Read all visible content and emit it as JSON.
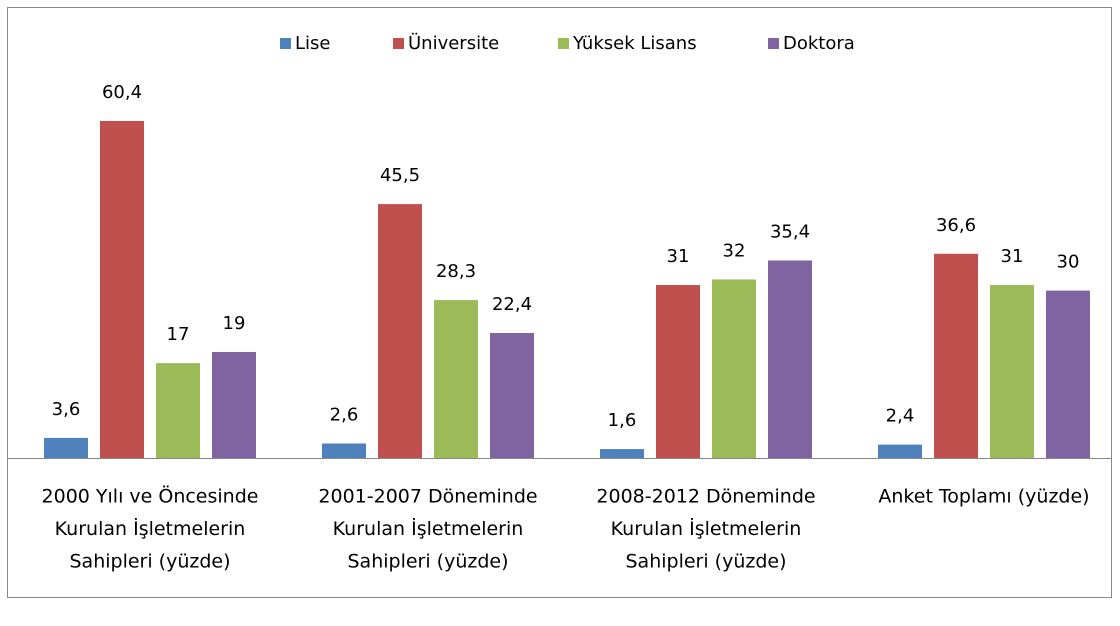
{
  "chart_data": {
    "type": "bar",
    "categories": [
      [
        "2000 Yılı ve Öncesinde",
        "Kurulan İşletmelerin",
        "Sahipleri (yüzde)"
      ],
      [
        "2001-2007 Döneminde",
        "Kurulan İşletmelerin",
        "Sahipleri (yüzde)"
      ],
      [
        "2008-2012 Döneminde",
        "Kurulan İşletmelerin",
        "Sahipleri (yüzde)"
      ],
      [
        "Anket Toplamı (yüzde)"
      ]
    ],
    "series": [
      {
        "name": "Lise",
        "color": "#4f81bd",
        "values": [
          3.6,
          2.6,
          1.6,
          2.4
        ],
        "value_labels": [
          "3,6",
          "2,6",
          "1,6",
          "2,4"
        ]
      },
      {
        "name": "Üniversite",
        "color": "#c0504d",
        "values": [
          60.4,
          45.5,
          31,
          36.6
        ],
        "value_labels": [
          "60,4",
          "45,5",
          "31",
          "36,6"
        ]
      },
      {
        "name": "Yüksek Lisans",
        "color": "#9bbb59",
        "values": [
          17,
          28.3,
          32,
          31
        ],
        "value_labels": [
          "17",
          "28,3",
          "32",
          "31"
        ]
      },
      {
        "name": "Doktora",
        "color": "#8064a2",
        "values": [
          19,
          22.4,
          35.4,
          30
        ],
        "value_labels": [
          "19",
          "22,4",
          "35,4",
          "30"
        ]
      }
    ],
    "ylim": [
      0,
      70
    ],
    "legend": "top"
  }
}
